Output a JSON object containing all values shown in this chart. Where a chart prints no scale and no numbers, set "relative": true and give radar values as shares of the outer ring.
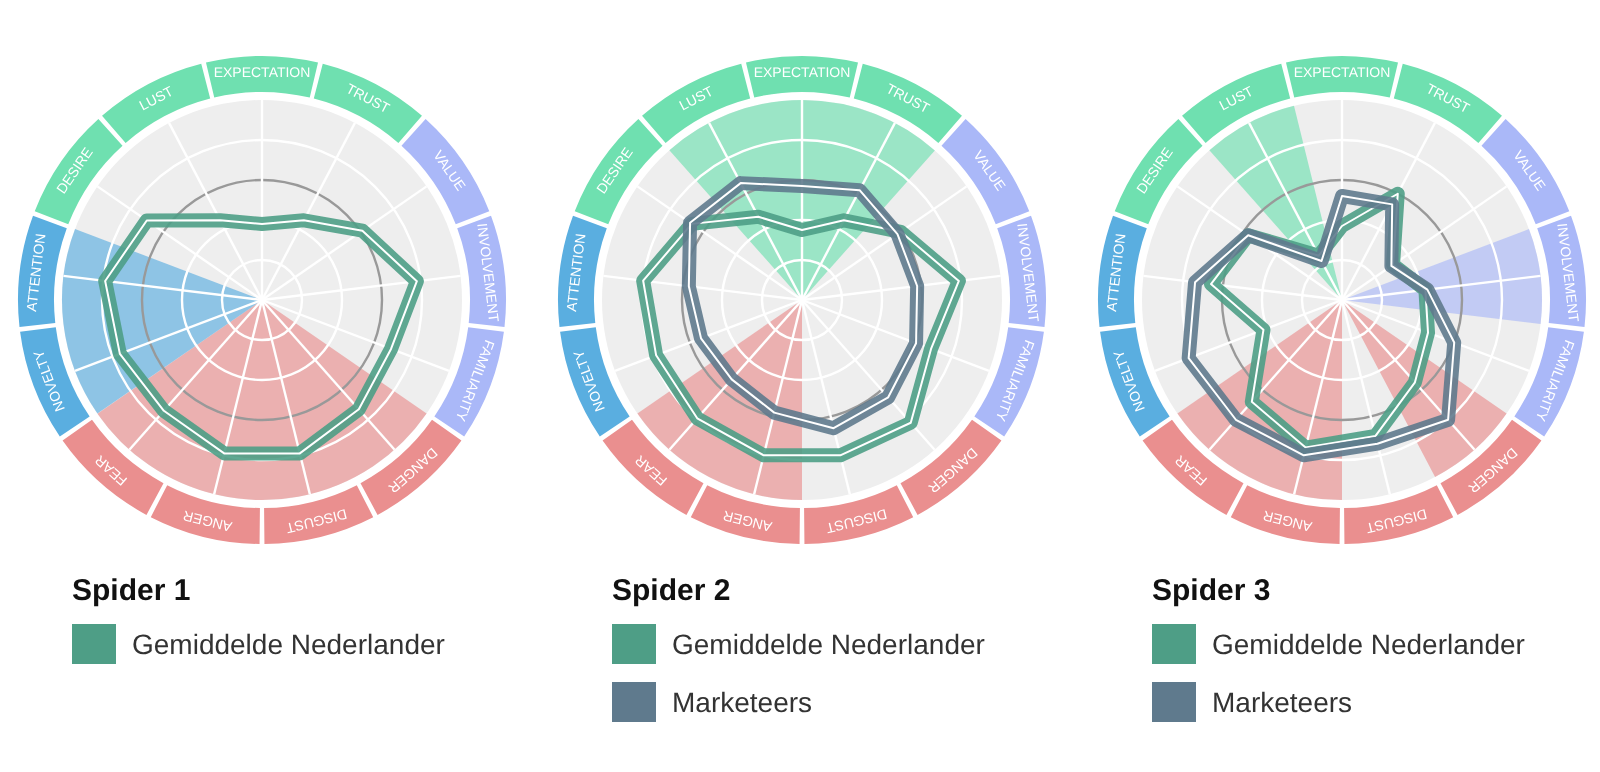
{
  "chart_data": [
    {
      "type": "radar",
      "title": "Spider 1",
      "relative": true,
      "grid": true,
      "legend": "bottom",
      "categories": [
        "EXPECTATION",
        "TRUST",
        "VALUE",
        "INVOLVEMENT",
        "FAMILIARITY",
        "DANGER",
        "DISGUST",
        "ANGER",
        "FEAR",
        "NOVELTY",
        "ATTENTION",
        "DESIRE",
        "LUST"
      ],
      "series": [
        {
          "name": "Gemiddelde Nederlander",
          "color": "#4e9e86",
          "values": [
            0.38,
            0.45,
            0.61,
            0.78,
            0.69,
            0.73,
            0.79,
            0.79,
            0.74,
            0.76,
            0.79,
            0.7,
            0.45
          ]
        }
      ]
    },
    {
      "type": "radar",
      "title": "Spider 2",
      "relative": true,
      "grid": true,
      "legend": "bottom",
      "categories": [
        "EXPECTATION",
        "TRUST",
        "VALUE",
        "INVOLVEMENT",
        "FAMILIARITY",
        "DANGER",
        "DISGUST",
        "ANGER",
        "FEAR",
        "NOVELTY",
        "ATTENTION",
        "DESIRE",
        "LUST"
      ],
      "series": [
        {
          "name": "Gemiddelde Nederlander",
          "color": "#4e9e86",
          "values": [
            0.35,
            0.45,
            0.6,
            0.79,
            0.69,
            0.82,
            0.8,
            0.8,
            0.79,
            0.78,
            0.8,
            0.67,
            0.47
          ]
        },
        {
          "name": "Marketeers",
          "color": "#5f7a8d",
          "values": [
            0.57,
            0.62,
            0.58,
            0.58,
            0.61,
            0.65,
            0.66,
            0.58,
            0.53,
            0.54,
            0.57,
            0.68,
            0.66
          ]
        }
      ]
    },
    {
      "type": "radar",
      "title": "Spider 3",
      "relative": true,
      "grid": true,
      "legend": "bottom",
      "categories": [
        "EXPECTATION",
        "TRUST",
        "VALUE",
        "INVOLVEMENT",
        "FAMILIARITY",
        "DANGER",
        "DISGUST",
        "ANGER",
        "FEAR",
        "NOVELTY",
        "ATTENTION",
        "DESIRE",
        "LUST"
      ],
      "series": [
        {
          "name": "Gemiddelde Nederlander",
          "color": "#4e9e86",
          "values": [
            0.37,
            0.6,
            0.31,
            0.42,
            0.46,
            0.55,
            0.7,
            0.76,
            0.68,
            0.42,
            0.66,
            0.57,
            0.25
          ]
        },
        {
          "name": "Marketeers",
          "color": "#5f7a8d",
          "values": [
            0.52,
            0.54,
            0.3,
            0.43,
            0.6,
            0.8,
            0.74,
            0.8,
            0.8,
            0.82,
            0.74,
            0.57,
            0.22
          ]
        }
      ]
    }
  ]
}
